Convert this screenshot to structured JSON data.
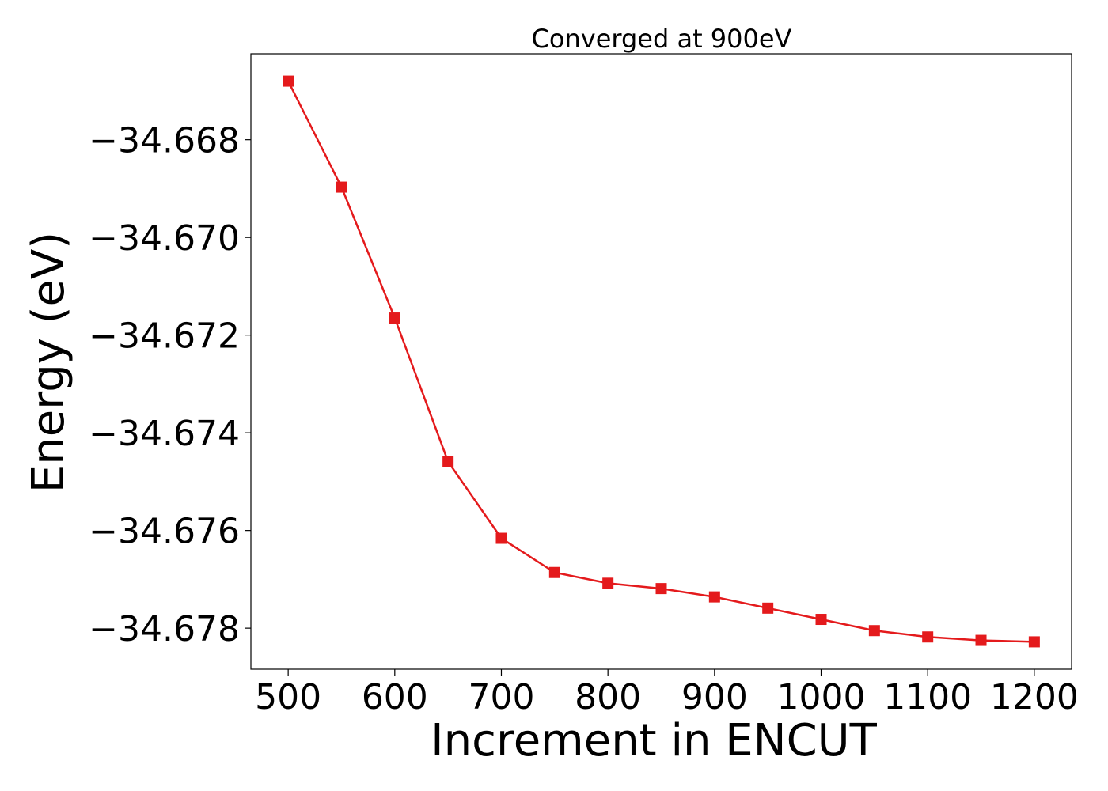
{
  "chart_data": {
    "type": "line",
    "title": "Converged at 900eV",
    "xlabel": "Increment in ENCUT",
    "ylabel": "Energy (eV)",
    "x": [
      500,
      550,
      600,
      650,
      700,
      750,
      800,
      850,
      900,
      950,
      1000,
      1050,
      1100,
      1150,
      1200
    ],
    "series": [
      {
        "values": [
          -34.6668,
          -34.66897,
          -34.67165,
          -34.67459,
          -34.67616,
          -34.67686,
          -34.67708,
          -34.67719,
          -34.67736,
          -34.67759,
          -34.67782,
          -34.67805,
          -34.67818,
          -34.67825,
          -34.67828
        ],
        "color": "#e41a1c",
        "marker": "square"
      }
    ],
    "xticks": [
      500,
      600,
      700,
      800,
      900,
      1000,
      1100,
      1200
    ],
    "xtick_labels": [
      "500",
      "600",
      "700",
      "800",
      "900",
      "1000",
      "1100",
      "1200"
    ],
    "yticks": [
      -34.668,
      -34.67,
      -34.672,
      -34.674,
      -34.676,
      -34.678
    ],
    "ytick_labels": [
      "−34.668",
      "−34.670",
      "−34.672",
      "−34.674",
      "−34.676",
      "−34.678"
    ],
    "xlim": [
      465,
      1235
    ],
    "ylim": [
      -34.67884,
      -34.66624
    ],
    "grid": false,
    "legend": false
  }
}
